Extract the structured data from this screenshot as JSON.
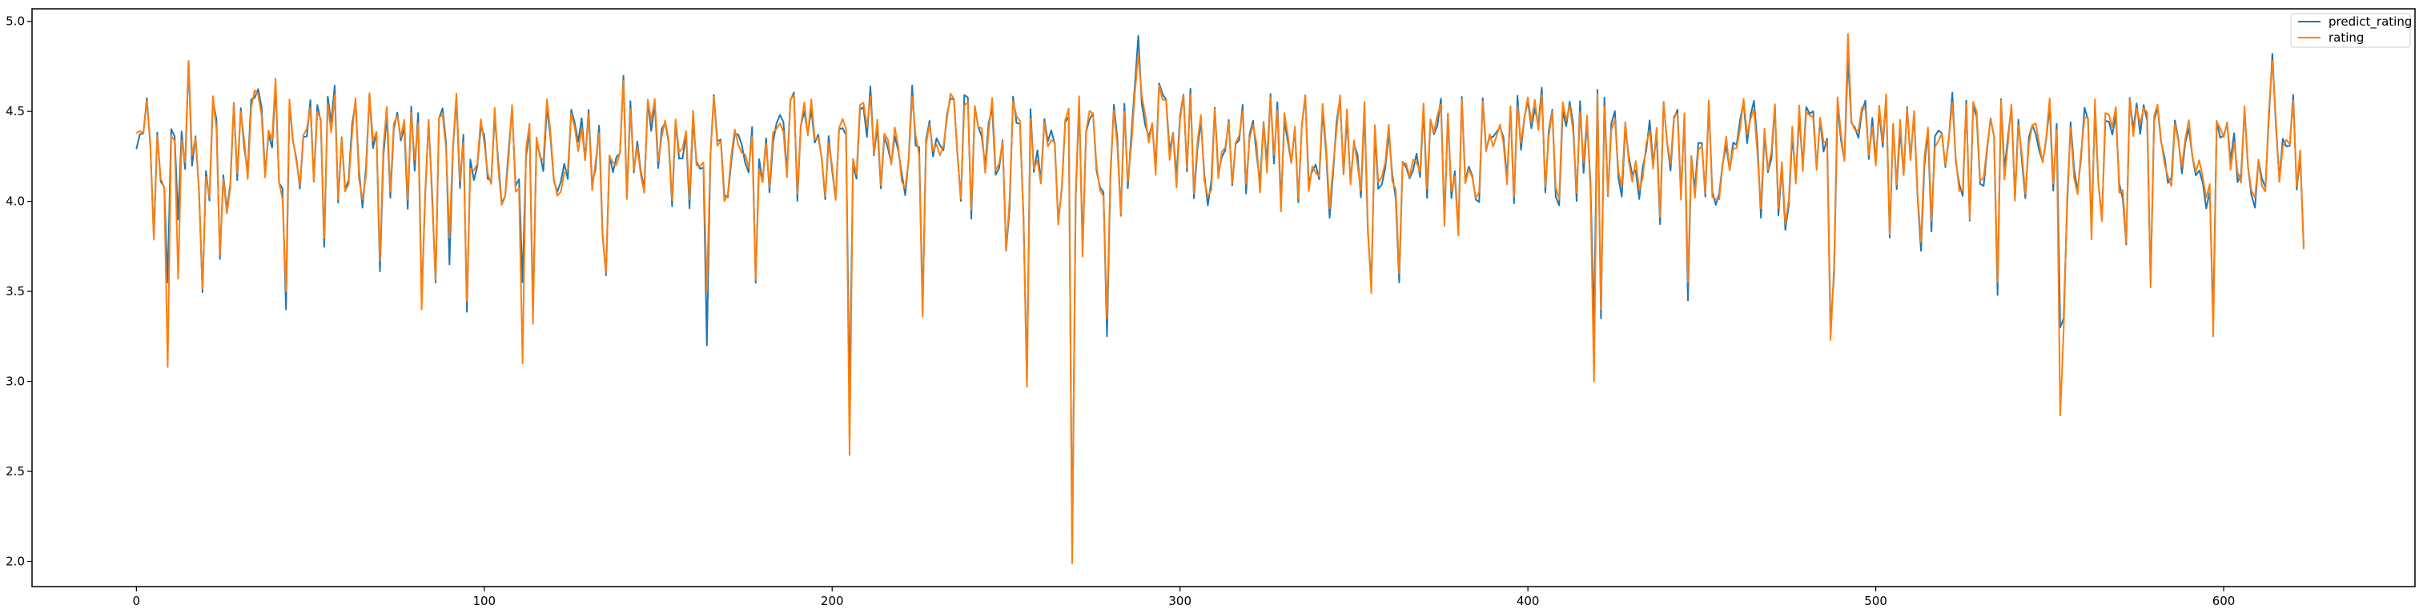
{
  "chart_data": {
    "type": "line",
    "title": "",
    "xlabel": "",
    "ylabel": "",
    "xlim": [
      -30,
      655
    ],
    "ylim": [
      1.86,
      5.07
    ],
    "xticks": [
      0,
      100,
      200,
      300,
      400,
      500,
      600
    ],
    "yticks": [
      2.0,
      2.5,
      3.0,
      3.5,
      4.0,
      4.5,
      5.0
    ],
    "xtick_labels": [
      "0",
      "100",
      "200",
      "300",
      "400",
      "500",
      "600"
    ],
    "ytick_labels": [
      "2.0",
      "2.5",
      "3.0",
      "3.5",
      "4.0",
      "4.5",
      "5.0"
    ],
    "grid": false,
    "legend": "top-right",
    "n_points": 624,
    "seed": 20240611,
    "anomalies": [
      {
        "x": 9,
        "predict_rating": 3.55,
        "rating": 3.08
      },
      {
        "x": 12,
        "predict_rating": 3.9,
        "rating": 3.57
      },
      {
        "x": 15,
        "predict_rating": 4.78,
        "rating": 4.78
      },
      {
        "x": 43,
        "predict_rating": 3.4,
        "rating": 3.5
      },
      {
        "x": 82,
        "predict_rating": 3.45,
        "rating": 3.4
      },
      {
        "x": 90,
        "predict_rating": 3.65,
        "rating": 3.8
      },
      {
        "x": 111,
        "predict_rating": 3.55,
        "rating": 3.1
      },
      {
        "x": 114,
        "predict_rating": 3.4,
        "rating": 3.32
      },
      {
        "x": 164,
        "predict_rating": 3.2,
        "rating": 3.5
      },
      {
        "x": 205,
        "predict_rating": 2.9,
        "rating": 2.59
      },
      {
        "x": 226,
        "predict_rating": 3.4,
        "rating": 3.36
      },
      {
        "x": 256,
        "predict_rating": 3.0,
        "rating": 2.97
      },
      {
        "x": 269,
        "predict_rating": 2.05,
        "rating": 1.99
      },
      {
        "x": 279,
        "predict_rating": 3.25,
        "rating": 3.35
      },
      {
        "x": 288,
        "predict_rating": 4.92,
        "rating": 4.82
      },
      {
        "x": 363,
        "predict_rating": 3.55,
        "rating": 3.6
      },
      {
        "x": 419,
        "predict_rating": 3.3,
        "rating": 3.0
      },
      {
        "x": 421,
        "predict_rating": 3.35,
        "rating": 3.4
      },
      {
        "x": 446,
        "predict_rating": 3.45,
        "rating": 3.55
      },
      {
        "x": 487,
        "predict_rating": 3.3,
        "rating": 3.23
      },
      {
        "x": 492,
        "predict_rating": 4.8,
        "rating": 4.93
      },
      {
        "x": 535,
        "predict_rating": 3.48,
        "rating": 3.55
      },
      {
        "x": 553,
        "predict_rating": 3.3,
        "rating": 2.81
      },
      {
        "x": 554,
        "predict_rating": 3.35,
        "rating": 3.28
      },
      {
        "x": 597,
        "predict_rating": 3.35,
        "rating": 3.25
      },
      {
        "x": 614,
        "predict_rating": 4.82,
        "rating": 4.78
      }
    ],
    "series": [
      {
        "name": "predict_rating",
        "color": "#1f77b4"
      },
      {
        "name": "rating",
        "color": "#ff7f0e"
      }
    ]
  }
}
